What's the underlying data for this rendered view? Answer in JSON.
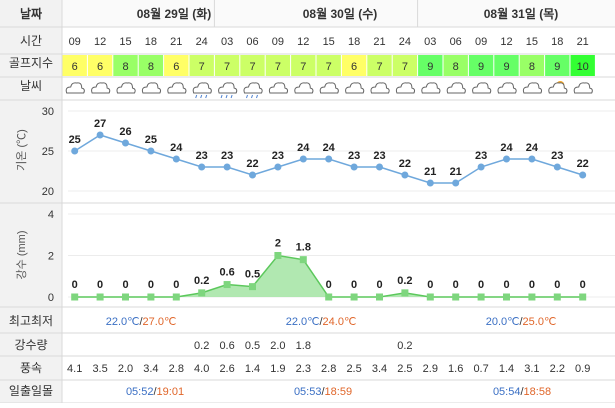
{
  "header": {
    "row_date_label": "날짜",
    "row_time_label": "시간",
    "row_golf_label": "골프지수",
    "row_weather_label": "날씨",
    "dates": [
      "08월 29일 (화)",
      "08월 30일 (수)",
      "08월 31일 (목)"
    ]
  },
  "times": [
    "09",
    "12",
    "15",
    "18",
    "21",
    "24",
    "03",
    "06",
    "09",
    "12",
    "15",
    "18",
    "21",
    "24",
    "03",
    "06",
    "09",
    "12",
    "15",
    "18",
    "21"
  ],
  "golf_index": [
    6,
    6,
    8,
    8,
    6,
    7,
    7,
    7,
    7,
    7,
    7,
    6,
    7,
    7,
    9,
    8,
    9,
    9,
    8,
    9,
    10
  ],
  "golf_colors": {
    "6": "#ffff66",
    "7": "#ccff66",
    "8": "#99ff66",
    "9": "#66ff66",
    "10": "#33ff33"
  },
  "weather_icons": [
    "cloud-icon",
    "cloud-icon",
    "cloud-icon",
    "cloud-icon",
    "cloud-icon",
    "rain-cloud-icon",
    "rain-cloud-icon",
    "rain-cloud-icon",
    "cloud-icon",
    "cloud-icon",
    "cloud-icon",
    "cloud-icon",
    "cloud-icon",
    "cloud-icon",
    "cloud-icon",
    "cloud-icon",
    "cloud-icon",
    "cloud-icon",
    "cloud-icon",
    "sun-cloud-icon",
    "cloud-icon"
  ],
  "chart_data": [
    {
      "type": "line",
      "ylabel": "기온 (℃)",
      "ylim": [
        20,
        30
      ],
      "yticks": [
        20,
        25,
        30
      ],
      "values": [
        25,
        27,
        26,
        25,
        24,
        23,
        23,
        22,
        23,
        24,
        24,
        23,
        23,
        22,
        21,
        21,
        23,
        24,
        24,
        23,
        22
      ],
      "color": "#6fa8dc",
      "grid": true
    },
    {
      "type": "area",
      "ylabel": "강수 (mm)",
      "ylim": [
        0,
        4
      ],
      "yticks": [
        0,
        2,
        4
      ],
      "values": [
        0,
        0,
        0,
        0,
        0,
        0.2,
        0.6,
        0.5,
        2,
        1.8,
        0,
        0,
        0,
        0.2,
        0,
        0,
        0,
        0,
        0,
        0,
        0
      ],
      "color": "#7ed67e",
      "grid": true
    }
  ],
  "footer": {
    "minmax_label": "최고최저",
    "minmax": [
      {
        "min": "22.0℃",
        "sep": "/",
        "max": "27.0℃"
      },
      {
        "min": "22.0℃",
        "sep": "/",
        "max": "24.0℃"
      },
      {
        "min": "20.0℃",
        "sep": "/",
        "max": "25.0℃"
      }
    ],
    "precip_label": "강수량",
    "precip": [
      "",
      "",
      "",
      "",
      "",
      "0.2",
      "0.6",
      "0.5",
      "2.0",
      "1.8",
      "",
      "",
      "",
      "0.2",
      "",
      "",
      "",
      "",
      "",
      "",
      ""
    ],
    "wind_label": "풍속",
    "wind": [
      "4.1",
      "3.5",
      "2.0",
      "3.4",
      "2.8",
      "4.0",
      "2.6",
      "1.4",
      "1.9",
      "2.3",
      "2.8",
      "2.5",
      "3.4",
      "2.5",
      "2.9",
      "1.6",
      "0.7",
      "1.4",
      "3.1",
      "2.2",
      "0.9"
    ],
    "sun_label": "일출일몰",
    "sun": [
      {
        "rise": "05:52",
        "sep": "/",
        "set": "19:01"
      },
      {
        "rise": "05:53",
        "sep": "/",
        "set": "18:59"
      },
      {
        "rise": "05:54",
        "sep": "/",
        "set": "18:58"
      }
    ]
  },
  "colors": {
    "label_bg": "#f2f2f2",
    "header_text": "#2a5ca8",
    "min_color": "#3a6fc4",
    "max_color": "#e0662a"
  }
}
